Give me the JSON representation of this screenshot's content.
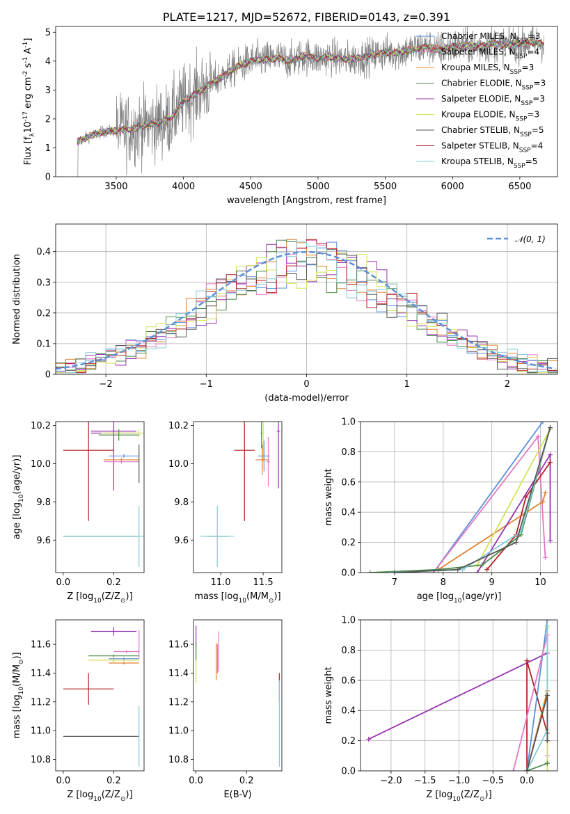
{
  "colors": {
    "chabrier_miles": "#5B8FD9",
    "salpeter_miles": "#E377C2",
    "kroupa_miles": "#E08030",
    "chabrier_elodie": "#4A8A4A",
    "salpeter_elodie": "#9932B0",
    "kroupa_elodie": "#D4E157",
    "chabrier_stelib": "#555555",
    "salpeter_stelib": "#B22222",
    "kroupa_stelib": "#80CBD4",
    "data": "#808080",
    "normal": "#5B8FD9"
  },
  "chart_data": [
    {
      "id": "spectrum",
      "type": "line",
      "title": "PLATE=1217, MJD=52672, FIBERID=0143, z=0.391",
      "xlabel": "wavelength [Angstrom, rest frame]",
      "ylabel": "Flux [f$_\\lambda$10$^{-17}$ erg cm$^{-2}$ s$^{-1}$ A$^{-1}$]",
      "xlim": [
        3050,
        6780
      ],
      "ylim": [
        0,
        5.2
      ],
      "xticks": [
        3500,
        4000,
        4500,
        5000,
        5500,
        6000,
        6500
      ],
      "yticks": [
        0,
        1,
        2,
        3,
        4,
        5
      ],
      "legend_position": "top-right",
      "model_curve": {
        "x": [
          3210,
          3300,
          3400,
          3500,
          3600,
          3700,
          3800,
          3900,
          4000,
          4100,
          4200,
          4300,
          4400,
          4500,
          4600,
          4700,
          4800,
          4900,
          5000,
          5100,
          5200,
          5300,
          5400,
          5500,
          5600,
          5700,
          5800,
          5900,
          6000,
          6100,
          6200,
          6300,
          6400,
          6500,
          6600,
          6680
        ],
        "y": [
          1.2,
          1.4,
          1.55,
          1.6,
          1.65,
          1.75,
          1.85,
          2.0,
          2.6,
          2.9,
          3.2,
          3.5,
          3.8,
          4.0,
          4.05,
          4.1,
          4.0,
          4.2,
          4.1,
          4.15,
          4.05,
          4.1,
          4.2,
          4.3,
          4.3,
          4.4,
          4.5,
          4.4,
          4.5,
          4.55,
          4.5,
          4.6,
          4.55,
          4.6,
          4.65,
          4.6
        ]
      },
      "series": [
        {
          "name": "Chabrier MILES, N$_{SSP}$=3",
          "color_key": "chabrier_miles"
        },
        {
          "name": "Salpeter MILES, N$_{SSP}$=4",
          "color_key": "salpeter_miles"
        },
        {
          "name": "Kroupa MILES, N$_{SSP}$=3",
          "color_key": "kroupa_miles"
        },
        {
          "name": "Chabrier ELODIE, N$_{SSP}$=3",
          "color_key": "chabrier_elodie"
        },
        {
          "name": "Salpeter ELODIE, N$_{SSP}$=3",
          "color_key": "salpeter_elodie"
        },
        {
          "name": "Kroupa ELODIE, N$_{SSP}$=3",
          "color_key": "kroupa_elodie"
        },
        {
          "name": "Chabrier STELIB, N$_{SSP}$=5",
          "color_key": "chabrier_stelib"
        },
        {
          "name": "Salpeter STELIB, N$_{SSP}$=4",
          "color_key": "salpeter_stelib"
        },
        {
          "name": "Kroupa STELIB, N$_{SSP}$=5",
          "color_key": "kroupa_stelib"
        }
      ]
    },
    {
      "id": "residuals",
      "type": "line",
      "xlabel": "(data-model)/error",
      "ylabel": "Normed distribution",
      "xlim": [
        -2.5,
        2.5
      ],
      "ylim": [
        0,
        0.49
      ],
      "xticks": [
        -2,
        -1,
        0,
        1,
        2
      ],
      "xticklabels": [
        "−2",
        "−1",
        "0",
        "1",
        "2"
      ],
      "yticks": [
        0,
        0.1,
        0.2,
        0.3,
        0.4
      ],
      "grid": true,
      "legend_position": "top-right",
      "legend": "$\\mathcal{N}(0, 1)$",
      "normal_curve": {
        "mean": 0,
        "sigma": 1
      }
    },
    {
      "id": "age_vs_Z",
      "type": "scatter",
      "xlabel": "Z [log$_{10}$(Z/Z$_\\odot$)]",
      "ylabel": "age  [log$_{10}$(age/yr)]",
      "xlim": [
        -0.03,
        0.32
      ],
      "ylim": [
        9.43,
        10.22
      ],
      "xticks": [
        0,
        0.2
      ],
      "xticklabels": [
        "0.0",
        "0.2"
      ],
      "yticks": [
        9.6,
        9.8,
        10.0,
        10.2
      ],
      "yticklabels": [
        "9.6",
        "9.8",
        "10.0",
        "10.2"
      ],
      "points": [
        {
          "x": 0.1,
          "y": 10.07,
          "xerr": 0.1,
          "yerr": 0.37,
          "c": "salpeter_stelib"
        },
        {
          "x": 0.15,
          "y": 9.62,
          "xerr": 0.15,
          "yerr": 0.0,
          "c": "chabrier_stelib"
        },
        {
          "x": 0.3,
          "y": 9.62,
          "xerr": 0.3,
          "yerr": 0.16,
          "c": "kroupa_stelib"
        },
        {
          "x": 0.2,
          "y": 10.17,
          "xerr": 0.09,
          "yerr": 0.02,
          "c": "salpeter_elodie"
        },
        {
          "x": 0.2,
          "y": 10.16,
          "xerr": 0.09,
          "yerr": 0.3,
          "c": "salpeter_elodie"
        },
        {
          "x": 0.3,
          "y": 10.16,
          "xerr": 0.15,
          "yerr": 0.02,
          "c": "kroupa_elodie"
        },
        {
          "x": 0.22,
          "y": 10.15,
          "xerr": 0.08,
          "yerr": 0.03,
          "c": "chabrier_elodie"
        },
        {
          "x": 0.24,
          "y": 10.04,
          "xerr": 0.06,
          "yerr": 0.01,
          "c": "chabrier_miles"
        },
        {
          "x": 0.23,
          "y": 10.02,
          "xerr": 0.07,
          "yerr": 0.01,
          "c": "kroupa_miles"
        },
        {
          "x": 0.23,
          "y": 10.01,
          "xerr": 0.07,
          "yerr": 0.01,
          "c": "salpeter_miles"
        },
        {
          "x": 0.3,
          "y": 10.0,
          "xerr": 0.0,
          "yerr": 0.1,
          "c": "chabrier_stelib"
        }
      ]
    },
    {
      "id": "age_vs_mass",
      "type": "scatter",
      "xlabel": "mass [log$_{10}$(M/M$_\\odot$)]",
      "xlim": [
        10.68,
        11.72
      ],
      "ylim": [
        9.43,
        10.22
      ],
      "xticks": [
        11.0,
        11.5
      ],
      "xticklabels": [
        "11.0",
        "11.5"
      ],
      "yticks": [
        9.6,
        9.8,
        10.0,
        10.2
      ],
      "yticklabels": [
        "9.6",
        "9.8",
        "10.0",
        "10.2"
      ],
      "points": [
        {
          "x": 11.28,
          "y": 10.07,
          "xerr": 0.12,
          "yerr": 0.37,
          "c": "salpeter_stelib"
        },
        {
          "x": 10.96,
          "y": 9.62,
          "xerr": 0.12,
          "yerr": 0.0,
          "c": "chabrier_stelib"
        },
        {
          "x": 10.96,
          "y": 9.62,
          "xerr": 0.2,
          "yerr": 0.16,
          "c": "kroupa_stelib"
        },
        {
          "x": 11.68,
          "y": 10.17,
          "xerr": 0.02,
          "yerr": 0.3,
          "c": "salpeter_elodie"
        },
        {
          "x": 11.5,
          "y": 10.16,
          "xerr": 0.01,
          "yerr": 0.15,
          "c": "kroupa_elodie"
        },
        {
          "x": 11.48,
          "y": 10.16,
          "xerr": 0.01,
          "yerr": 0.08,
          "c": "chabrier_elodie"
        },
        {
          "x": 11.51,
          "y": 10.04,
          "xerr": 0.07,
          "yerr": 0.08,
          "c": "chabrier_miles"
        },
        {
          "x": 11.49,
          "y": 10.02,
          "xerr": 0.08,
          "yerr": 0.08,
          "c": "kroupa_miles"
        },
        {
          "x": 11.56,
          "y": 10.01,
          "xerr": 0.02,
          "yerr": 0.13,
          "c": "salpeter_miles"
        }
      ]
    },
    {
      "id": "weight_vs_age",
      "type": "line",
      "xlabel": "age  [log$_{10}$(age/yr)]",
      "ylabel": "mass weight",
      "xlim": [
        6.3,
        10.35
      ],
      "ylim": [
        0,
        1
      ],
      "xticks": [
        7,
        8,
        9,
        10
      ],
      "yticks": [
        0,
        0.2,
        0.4,
        0.6,
        0.8,
        1.0
      ],
      "yticklabels": [
        "0.0",
        "0.2",
        "0.4",
        "0.6",
        "0.8",
        "1.0"
      ],
      "grid": true,
      "series": [
        {
          "c": "chabrier_miles",
          "x": [
            7.8,
            10.05
          ],
          "y": [
            0.0,
            1.0
          ]
        },
        {
          "c": "salpeter_miles",
          "x": [
            7.8,
            9.95,
            10.1
          ],
          "y": [
            0.0,
            0.9,
            0.1
          ]
        },
        {
          "c": "kroupa_miles",
          "x": [
            7.9,
            10.05,
            10.1
          ],
          "y": [
            0.02,
            0.47,
            0.53
          ]
        },
        {
          "c": "salpeter_elodie",
          "x": [
            8.7,
            10.2,
            10.2
          ],
          "y": [
            0.0,
            0.78,
            0.21
          ]
        },
        {
          "c": "kroupa_elodie",
          "x": [
            8.7,
            10.2
          ],
          "y": [
            0.05,
            0.95
          ]
        },
        {
          "c": "salpeter_stelib",
          "x": [
            8.9,
            9.5,
            9.7,
            10.2
          ],
          "y": [
            0.02,
            0.25,
            0.5,
            0.73
          ]
        },
        {
          "c": "chabrier_elodie",
          "x": [
            6.5,
            7.9,
            8.8,
            9.6,
            10.2
          ],
          "y": [
            0.0,
            0.02,
            0.05,
            0.25,
            0.96
          ]
        },
        {
          "c": "kroupa_stelib",
          "x": [
            6.9,
            8.4,
            9.6,
            10.2
          ],
          "y": [
            0.0,
            0.02,
            0.27,
            0.96
          ]
        },
        {
          "c": "chabrier_stelib",
          "x": [
            7.0,
            8.3,
            9.5,
            10.2
          ],
          "y": [
            0.0,
            0.02,
            0.2,
            0.96
          ]
        }
      ]
    },
    {
      "id": "mass_vs_Z",
      "type": "scatter",
      "xlabel": "Z [log$_{10}$(Z/Z$_\\odot$)]",
      "ylabel": "mass [log$_{10}$(M/M$_\\odot$)]",
      "xlim": [
        -0.03,
        0.32
      ],
      "ylim": [
        10.72,
        11.77
      ],
      "xticks": [
        0,
        0.2
      ],
      "xticklabels": [
        "0.0",
        "0.2"
      ],
      "yticks": [
        10.8,
        11.0,
        11.2,
        11.4,
        11.6
      ],
      "yticklabels": [
        "10.8",
        "11.0",
        "11.2",
        "11.4",
        "11.6"
      ],
      "points": [
        {
          "x": 0.1,
          "y": 11.29,
          "xerr": 0.1,
          "yerr": 0.11,
          "c": "salpeter_stelib"
        },
        {
          "x": 0.15,
          "y": 10.96,
          "xerr": 0.15,
          "yerr": 0.0,
          "c": "chabrier_stelib"
        },
        {
          "x": 0.3,
          "y": 10.96,
          "xerr": 0.0,
          "yerr": 0.21,
          "c": "kroupa_stelib"
        },
        {
          "x": 0.2,
          "y": 11.69,
          "xerr": 0.09,
          "yerr": 0.03,
          "c": "salpeter_elodie"
        },
        {
          "x": 0.2,
          "y": 11.52,
          "xerr": 0.1,
          "yerr": 0.01,
          "c": "chabrier_elodie"
        },
        {
          "x": 0.2,
          "y": 11.49,
          "xerr": 0.1,
          "yerr": 0.02,
          "c": "kroupa_elodie"
        },
        {
          "x": 0.24,
          "y": 11.5,
          "xerr": 0.06,
          "yerr": 0.01,
          "c": "chabrier_miles"
        },
        {
          "x": 0.24,
          "y": 11.47,
          "xerr": 0.06,
          "yerr": 0.01,
          "c": "kroupa_miles"
        },
        {
          "x": 0.25,
          "y": 11.55,
          "xerr": 0.05,
          "yerr": 0.01,
          "c": "salpeter_miles"
        },
        {
          "x": 0.3,
          "y": 11.6,
          "xerr": 0.0,
          "yerr": 0.1,
          "c": "salpeter_miles"
        }
      ]
    },
    {
      "id": "mass_vs_ebv",
      "type": "scatter",
      "xlabel": "E(B-V)",
      "xlim": [
        -0.01,
        0.34
      ],
      "ylim": [
        10.72,
        11.77
      ],
      "xticks": [
        0,
        0.2
      ],
      "xticklabels": [
        "0.0",
        "0.2"
      ],
      "yticks": [
        10.8,
        11.0,
        11.2,
        11.4,
        11.6
      ],
      "yticklabels": [
        "10.8",
        "11.0",
        "11.2",
        "11.4",
        "11.6"
      ],
      "points": [
        {
          "x": 0.0,
          "y": 11.65,
          "xerr": 0.0,
          "yerr": 0.08,
          "c": "salpeter_elodie"
        },
        {
          "x": 0.0,
          "y": 11.45,
          "xerr": 0.0,
          "yerr": 0.12,
          "c": "kroupa_elodie"
        },
        {
          "x": 0.0,
          "y": 11.55,
          "xerr": 0.0,
          "yerr": 0.06,
          "c": "chabrier_elodie"
        },
        {
          "x": 0.08,
          "y": 11.48,
          "xerr": 0.0,
          "yerr": 0.13,
          "c": "kroupa_miles"
        },
        {
          "x": 0.085,
          "y": 11.5,
          "xerr": 0.0,
          "yerr": 0.1,
          "c": "salpeter_miles"
        },
        {
          "x": 0.09,
          "y": 11.55,
          "xerr": 0.0,
          "yerr": 0.14,
          "c": "salpeter_miles"
        },
        {
          "x": 0.33,
          "y": 11.3,
          "xerr": 0.0,
          "yerr": 0.1,
          "c": "salpeter_stelib"
        },
        {
          "x": 0.33,
          "y": 11.05,
          "xerr": 0.0,
          "yerr": 0.3,
          "c": "kroupa_stelib"
        }
      ]
    },
    {
      "id": "weight_vs_Z",
      "type": "line",
      "xlabel": "Z [log$_{10}$(Z/Z$_\\odot$)]",
      "ylabel": "mass weight",
      "xlim": [
        -2.45,
        0.45
      ],
      "ylim": [
        0,
        1
      ],
      "xticks": [
        -2.0,
        -1.5,
        -1.0,
        -0.5,
        0.0
      ],
      "xticklabels": [
        "−2.0",
        "−1.5",
        "−1.0",
        "−0.5",
        "0.0"
      ],
      "yticks": [
        0,
        0.2,
        0.4,
        0.6,
        0.8,
        1.0
      ],
      "yticklabels": [
        "0.0",
        "0.2",
        "0.4",
        "0.6",
        "0.8",
        "1.0"
      ],
      "grid": true,
      "series": [
        {
          "c": "salpeter_elodie",
          "x": [
            -2.33,
            0.3
          ],
          "y": [
            0.21,
            0.78
          ]
        },
        {
          "c": "salpeter_stelib",
          "x": [
            0.0,
            0.0,
            0.3,
            0.3
          ],
          "y": [
            0.0,
            0.73,
            0.25,
            0.5
          ]
        },
        {
          "c": "chabrier_miles",
          "x": [
            0.0,
            0.3
          ],
          "y": [
            0.0,
            1.0
          ]
        },
        {
          "c": "salpeter_miles",
          "x": [
            -0.2,
            0.3,
            0.3
          ],
          "y": [
            0.0,
            0.9,
            0.1
          ]
        },
        {
          "c": "kroupa_miles",
          "x": [
            0.0,
            0.3,
            0.3
          ],
          "y": [
            0.0,
            0.53,
            0.05
          ]
        },
        {
          "c": "kroupa_elodie",
          "x": [
            0.3,
            0.3
          ],
          "y": [
            0.0,
            0.95
          ]
        },
        {
          "c": "chabrier_elodie",
          "x": [
            0.0,
            0.3
          ],
          "y": [
            0.0,
            0.05
          ]
        },
        {
          "c": "kroupa_stelib",
          "x": [
            0.0,
            0.3,
            0.3
          ],
          "y": [
            0.0,
            0.27,
            0.96
          ]
        },
        {
          "c": "chabrier_stelib",
          "x": [
            0.0,
            0.3,
            0.3
          ],
          "y": [
            0.0,
            0.5,
            0.2
          ]
        }
      ]
    }
  ]
}
